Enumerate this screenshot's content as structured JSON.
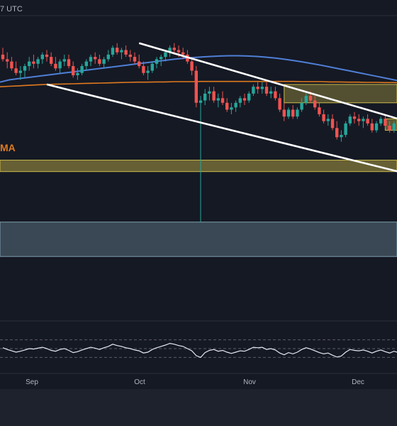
{
  "header": {
    "timezone_label": "7 UTC"
  },
  "overlay_label": "MA",
  "colors": {
    "background": "#151924",
    "bottom_bar": "#1e222d",
    "up_candle": "#26a69a",
    "down_candle": "#ef5350",
    "ma_blue": "#4f7fd6",
    "ma_orange": "#e07a1f",
    "channel": "#ffffff",
    "zone_yellow": "#c9b84a",
    "zone_blue": "#7fa0b0",
    "rsi_line": "#e6e9f0"
  },
  "chart_data": {
    "type": "candlestick",
    "x_tick_labels": [
      "Sep",
      "Oct",
      "Nov",
      "Dec"
    ],
    "candles": [
      {
        "o": 113,
        "h": 116,
        "l": 110,
        "c": 111
      },
      {
        "o": 111,
        "h": 114,
        "l": 107,
        "c": 110
      },
      {
        "o": 110,
        "h": 112,
        "l": 106,
        "c": 107
      },
      {
        "o": 107,
        "h": 110,
        "l": 104,
        "c": 105
      },
      {
        "o": 105,
        "h": 108,
        "l": 102,
        "c": 106
      },
      {
        "o": 106,
        "h": 109,
        "l": 103,
        "c": 108
      },
      {
        "o": 108,
        "h": 112,
        "l": 106,
        "c": 110
      },
      {
        "o": 110,
        "h": 113,
        "l": 107,
        "c": 109
      },
      {
        "o": 109,
        "h": 112,
        "l": 107,
        "c": 111
      },
      {
        "o": 111,
        "h": 114,
        "l": 109,
        "c": 113
      },
      {
        "o": 113,
        "h": 115,
        "l": 110,
        "c": 112
      },
      {
        "o": 112,
        "h": 114,
        "l": 108,
        "c": 109
      },
      {
        "o": 109,
        "h": 112,
        "l": 106,
        "c": 107
      },
      {
        "o": 107,
        "h": 111,
        "l": 105,
        "c": 110
      },
      {
        "o": 110,
        "h": 113,
        "l": 108,
        "c": 111
      },
      {
        "o": 111,
        "h": 113,
        "l": 107,
        "c": 108
      },
      {
        "o": 108,
        "h": 110,
        "l": 103,
        "c": 104
      },
      {
        "o": 104,
        "h": 107,
        "l": 102,
        "c": 105
      },
      {
        "o": 105,
        "h": 109,
        "l": 104,
        "c": 108
      },
      {
        "o": 108,
        "h": 111,
        "l": 106,
        "c": 110
      },
      {
        "o": 110,
        "h": 113,
        "l": 108,
        "c": 112
      },
      {
        "o": 112,
        "h": 114,
        "l": 109,
        "c": 111
      },
      {
        "o": 111,
        "h": 113,
        "l": 108,
        "c": 109
      },
      {
        "o": 109,
        "h": 112,
        "l": 107,
        "c": 111
      },
      {
        "o": 111,
        "h": 115,
        "l": 110,
        "c": 113
      },
      {
        "o": 113,
        "h": 117,
        "l": 112,
        "c": 116
      },
      {
        "o": 116,
        "h": 118,
        "l": 113,
        "c": 114
      },
      {
        "o": 114,
        "h": 116,
        "l": 111,
        "c": 115
      },
      {
        "o": 115,
        "h": 117,
        "l": 112,
        "c": 113
      },
      {
        "o": 113,
        "h": 115,
        "l": 110,
        "c": 112
      },
      {
        "o": 112,
        "h": 114,
        "l": 109,
        "c": 110
      },
      {
        "o": 110,
        "h": 113,
        "l": 107,
        "c": 108
      },
      {
        "o": 108,
        "h": 110,
        "l": 104,
        "c": 105
      },
      {
        "o": 105,
        "h": 108,
        "l": 102,
        "c": 106
      },
      {
        "o": 106,
        "h": 110,
        "l": 105,
        "c": 109
      },
      {
        "o": 109,
        "h": 112,
        "l": 107,
        "c": 111
      },
      {
        "o": 111,
        "h": 113,
        "l": 108,
        "c": 112
      },
      {
        "o": 112,
        "h": 115,
        "l": 110,
        "c": 114
      },
      {
        "o": 114,
        "h": 117,
        "l": 112,
        "c": 116
      },
      {
        "o": 116,
        "h": 118,
        "l": 113,
        "c": 115
      },
      {
        "o": 115,
        "h": 117,
        "l": 112,
        "c": 114
      },
      {
        "o": 114,
        "h": 116,
        "l": 111,
        "c": 113
      },
      {
        "o": 113,
        "h": 115,
        "l": 109,
        "c": 110
      },
      {
        "o": 110,
        "h": 112,
        "l": 104,
        "c": 106
      },
      {
        "o": 106,
        "h": 108,
        "l": 90,
        "c": 92
      },
      {
        "o": 92,
        "h": 95,
        "l": 40,
        "c": 93
      },
      {
        "o": 93,
        "h": 98,
        "l": 91,
        "c": 96
      },
      {
        "o": 96,
        "h": 99,
        "l": 93,
        "c": 97
      },
      {
        "o": 97,
        "h": 99,
        "l": 92,
        "c": 93
      },
      {
        "o": 93,
        "h": 96,
        "l": 90,
        "c": 94
      },
      {
        "o": 94,
        "h": 97,
        "l": 91,
        "c": 92
      },
      {
        "o": 92,
        "h": 94,
        "l": 88,
        "c": 89
      },
      {
        "o": 89,
        "h": 92,
        "l": 87,
        "c": 90
      },
      {
        "o": 90,
        "h": 93,
        "l": 88,
        "c": 92
      },
      {
        "o": 92,
        "h": 95,
        "l": 90,
        "c": 94
      },
      {
        "o": 94,
        "h": 96,
        "l": 91,
        "c": 93
      },
      {
        "o": 93,
        "h": 97,
        "l": 92,
        "c": 96
      },
      {
        "o": 96,
        "h": 100,
        "l": 95,
        "c": 99
      },
      {
        "o": 99,
        "h": 101,
        "l": 96,
        "c": 98
      },
      {
        "o": 98,
        "h": 101,
        "l": 96,
        "c": 99
      },
      {
        "o": 99,
        "h": 101,
        "l": 95,
        "c": 96
      },
      {
        "o": 96,
        "h": 99,
        "l": 94,
        "c": 97
      },
      {
        "o": 97,
        "h": 99,
        "l": 93,
        "c": 94
      },
      {
        "o": 94,
        "h": 96,
        "l": 88,
        "c": 89
      },
      {
        "o": 89,
        "h": 92,
        "l": 84,
        "c": 86
      },
      {
        "o": 86,
        "h": 90,
        "l": 85,
        "c": 89
      },
      {
        "o": 89,
        "h": 91,
        "l": 85,
        "c": 86
      },
      {
        "o": 86,
        "h": 90,
        "l": 85,
        "c": 89
      },
      {
        "o": 89,
        "h": 94,
        "l": 88,
        "c": 92
      },
      {
        "o": 92,
        "h": 96,
        "l": 91,
        "c": 95
      },
      {
        "o": 95,
        "h": 97,
        "l": 92,
        "c": 93
      },
      {
        "o": 93,
        "h": 95,
        "l": 89,
        "c": 90
      },
      {
        "o": 90,
        "h": 92,
        "l": 86,
        "c": 87
      },
      {
        "o": 87,
        "h": 89,
        "l": 83,
        "c": 84
      },
      {
        "o": 84,
        "h": 87,
        "l": 82,
        "c": 85
      },
      {
        "o": 85,
        "h": 87,
        "l": 80,
        "c": 81
      },
      {
        "o": 81,
        "h": 84,
        "l": 76,
        "c": 77
      },
      {
        "o": 77,
        "h": 80,
        "l": 75,
        "c": 78
      },
      {
        "o": 78,
        "h": 84,
        "l": 77,
        "c": 83
      },
      {
        "o": 83,
        "h": 87,
        "l": 82,
        "c": 86
      },
      {
        "o": 86,
        "h": 88,
        "l": 83,
        "c": 85
      },
      {
        "o": 85,
        "h": 87,
        "l": 82,
        "c": 84
      },
      {
        "o": 84,
        "h": 86,
        "l": 81,
        "c": 85
      },
      {
        "o": 85,
        "h": 87,
        "l": 82,
        "c": 83
      },
      {
        "o": 83,
        "h": 85,
        "l": 79,
        "c": 80
      },
      {
        "o": 80,
        "h": 84,
        "l": 79,
        "c": 83
      },
      {
        "o": 83,
        "h": 86,
        "l": 82,
        "c": 85
      },
      {
        "o": 85,
        "h": 87,
        "l": 81,
        "c": 82
      },
      {
        "o": 82,
        "h": 84,
        "l": 79,
        "c": 80
      },
      {
        "o": 80,
        "h": 84,
        "l": 79,
        "c": 83
      },
      {
        "o": 83,
        "h": 85,
        "l": 79,
        "c": 80
      }
    ],
    "ma_blue": [
      101,
      102,
      102.5,
      103,
      103.5,
      104,
      104.5,
      105,
      105.5,
      106,
      106.5,
      107,
      107.5,
      108,
      108.5,
      109,
      109.5,
      110,
      110.5,
      111,
      111.4,
      111.7,
      112,
      112.2,
      112.4,
      112.5,
      112.5,
      112.4,
      112.2,
      111.9,
      111.5,
      111,
      110.4,
      109.8,
      109.1,
      108.4,
      107.6,
      106.8,
      106,
      105.2,
      104.4,
      103.6,
      102.8,
      102,
      101.2,
      100.5
    ],
    "ma_orange": [
      99,
      99.2,
      99.4,
      99.6,
      99.8,
      100,
      100.1,
      100.2,
      100.3,
      100.4,
      100.5,
      100.6,
      100.7,
      100.8,
      100.9,
      101,
      101,
      101.1,
      101.1,
      101.2,
      101.2,
      101.2,
      101.3,
      101.3,
      101.3,
      101.3,
      101.3,
      101.3,
      101.3,
      101.3,
      101.3,
      101.3,
      101.3,
      101.2,
      101.2,
      101.2,
      101.1,
      101.1,
      101,
      101,
      100.9,
      100.9,
      100.8,
      100.8,
      100.7,
      100.7
    ],
    "rsi": [
      52,
      48,
      45,
      42,
      44,
      47,
      50,
      49,
      51,
      53,
      50,
      46,
      44,
      48,
      50,
      46,
      41,
      43,
      47,
      50,
      53,
      51,
      48,
      52,
      55,
      60,
      57,
      55,
      52,
      50,
      47,
      45,
      40,
      42,
      48,
      52,
      55,
      58,
      62,
      60,
      57,
      55,
      50,
      45,
      34,
      30,
      41,
      46,
      48,
      44,
      46,
      42,
      39,
      42,
      45,
      44,
      48,
      53,
      52,
      53,
      48,
      50,
      47,
      40,
      36,
      41,
      38,
      42,
      48,
      52,
      49,
      45,
      41,
      38,
      40,
      35,
      31,
      33,
      42,
      48,
      46,
      45,
      47,
      44,
      40,
      44,
      47,
      43,
      40,
      44,
      41
    ],
    "rsi_bands": [
      70,
      50,
      30
    ],
    "channel_upper": {
      "from_index": 31,
      "from_value": 118,
      "to_index": 90,
      "to_value": 85
    },
    "channel_lower": {
      "from_index": 10,
      "from_value": 100,
      "to_index": 90,
      "to_value": 62
    },
    "support_zone": {
      "top": 67,
      "bottom": 62
    },
    "lower_zone": {
      "top": 40,
      "bottom": 25
    },
    "resistance_zone": {
      "from_index": 64,
      "top": 100,
      "bottom": 92
    },
    "small_zone": {
      "from_index": 87,
      "top": 85,
      "bottom": 80
    },
    "value_range": [
      0,
      130
    ],
    "rsi_range": [
      0,
      100
    ]
  }
}
